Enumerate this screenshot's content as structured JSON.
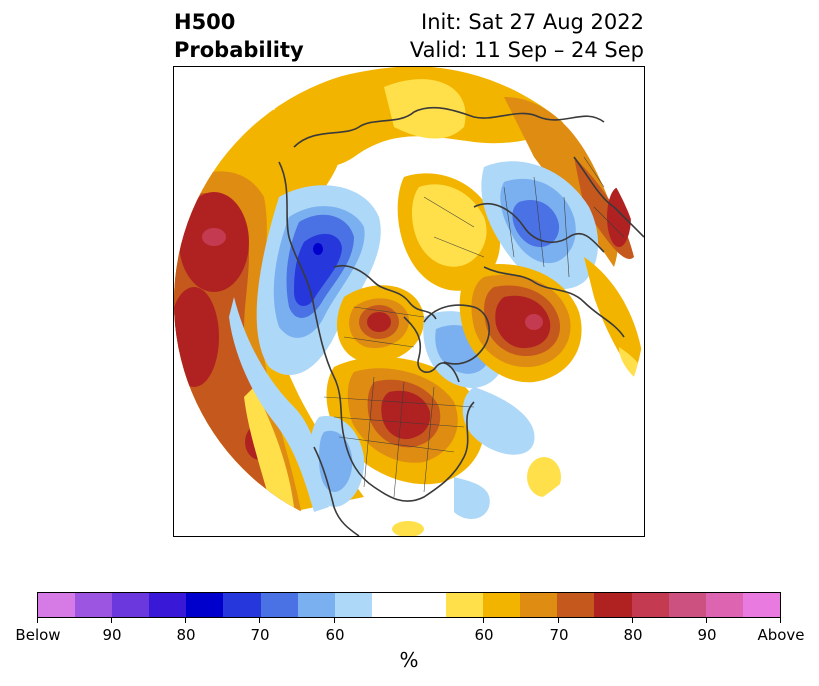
{
  "title": {
    "left_line1": "H500",
    "left_line2": "Probability",
    "right_line1": "Init: Sat 27 Aug 2022",
    "right_line2": "Valid: 11 Sep – 24 Sep"
  },
  "colorbar": {
    "label": "%",
    "colors": [
      "#d67ae6",
      "#9b55e0",
      "#6a38dc",
      "#3a18d8",
      "#0000cc",
      "#2638dc",
      "#4a72e4",
      "#7ab0f0",
      "#aed8f8",
      "#ffffff",
      "#ffffff",
      "#ffe04a",
      "#f3b400",
      "#df8c12",
      "#c5581c",
      "#b02222",
      "#c43a50",
      "#cc5080",
      "#dc64b0",
      "#e87ae0"
    ],
    "tick_labels": [
      "Below",
      "90",
      "80",
      "70",
      "60",
      "60",
      "70",
      "80",
      "90",
      "Above"
    ]
  },
  "map": {
    "projection": "north-polar-stereographic",
    "features": [
      "h500-probability-shading",
      "coastlines",
      "country-borders",
      "us-state-borders"
    ]
  }
}
